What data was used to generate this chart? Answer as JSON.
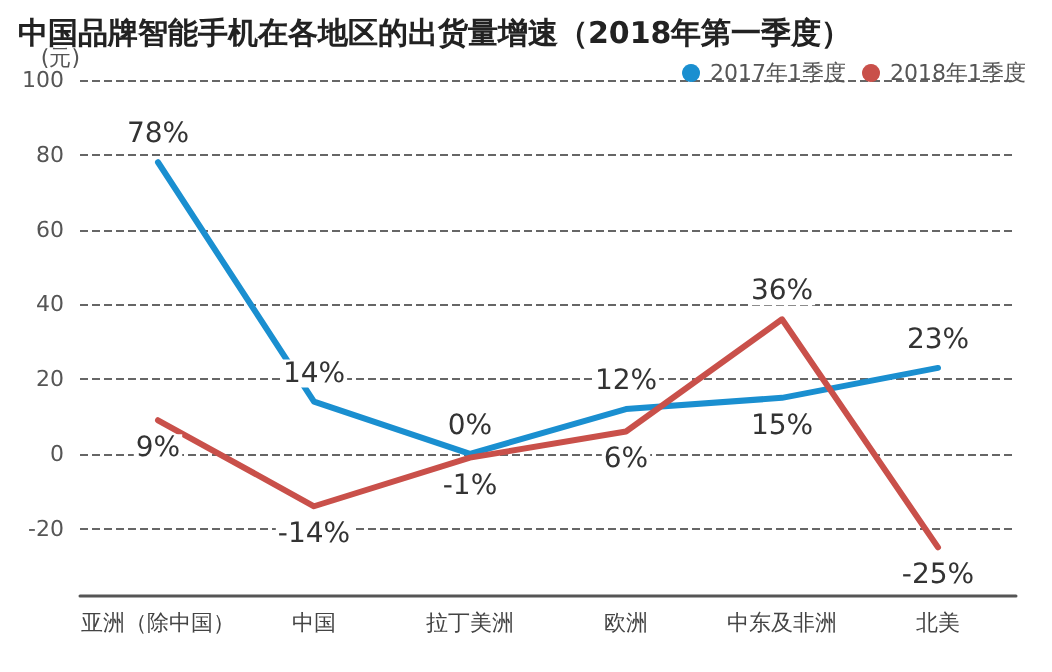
{
  "chart_data": {
    "type": "line",
    "title": "中国品牌智能手机在各地区的出货量增速（2018年第一季度）",
    "ylabel": "(元)",
    "categories": [
      "亚洲（除中国）",
      "中国",
      "拉丁美洲",
      "欧洲",
      "中东及非洲",
      "北美"
    ],
    "series": [
      {
        "name": "2017年1季度",
        "color": "#1a8fd0",
        "values": [
          78,
          14,
          0,
          12,
          15,
          23
        ],
        "value_labels": [
          "78%",
          "14%",
          "0%",
          "12%",
          "15%",
          "23%"
        ]
      },
      {
        "name": "2018年1季度",
        "color": "#c9504a",
        "values": [
          9,
          -14,
          -1,
          6,
          36,
          -25
        ],
        "value_labels": [
          "9%",
          "-14%",
          "-1%",
          "6%",
          "36%",
          "-25%"
        ]
      }
    ],
    "ylim": [
      -38,
      100
    ],
    "yticks": [
      -20,
      0,
      20,
      40,
      60,
      80,
      100
    ],
    "grid": "y",
    "legend": "top right",
    "marker": "none",
    "line_style": "solid"
  }
}
